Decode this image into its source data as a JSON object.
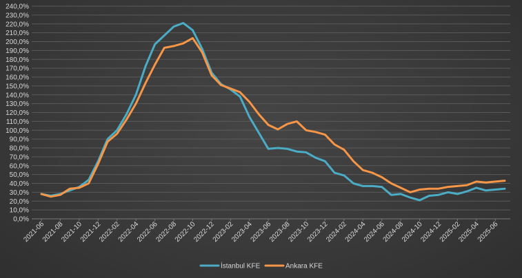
{
  "chart_data": {
    "type": "line",
    "title": "",
    "xlabel": "",
    "ylabel": "",
    "ylim": [
      0,
      240
    ],
    "ytick_step": 10,
    "ytick_format": "percent_comma",
    "x": [
      "2021-06",
      "2021-07",
      "2021-08",
      "2021-09",
      "2021-10",
      "2021-11",
      "2021-12",
      "2022-01",
      "2022-02",
      "2022-03",
      "2022-04",
      "2022-05",
      "2022-06",
      "2022-07",
      "2022-08",
      "2022-09",
      "2022-10",
      "2022-11",
      "2022-12",
      "2023-01",
      "2023-02",
      "2023-03",
      "2023-04",
      "2023-05",
      "2023-06",
      "2023-07",
      "2023-08",
      "2023-09",
      "2023-10",
      "2023-11",
      "2023-12",
      "2024-01",
      "2024-02",
      "2024-03",
      "2024-04",
      "2024-05",
      "2024-06",
      "2024-07",
      "2024-08",
      "2024-09",
      "2024-10",
      "2024-11",
      "2024-12",
      "2025-01",
      "2025-02",
      "2025-03",
      "2025-04",
      "2025-05",
      "2025-06",
      "2025-07"
    ],
    "x_tick_labels": [
      "2021-06",
      "2021-08",
      "2021-10",
      "2021-12",
      "2022-02",
      "2022-04",
      "2022-06",
      "2022-08",
      "2022-10",
      "2022-12",
      "2023-02",
      "2023-04",
      "2023-06",
      "2023-08",
      "2023-10",
      "2023-12",
      "2024-02",
      "2024-04",
      "2024-06",
      "2024-08",
      "2024-10",
      "2024-12",
      "2025-02",
      "2025-04",
      "2025-06"
    ],
    "series": [
      {
        "name": "İstanbul KFE",
        "color": "#4bacc6",
        "values": [
          28,
          26,
          28,
          32,
          36,
          44,
          65,
          90,
          100,
          118,
          140,
          172,
          197,
          207,
          217,
          221,
          213,
          192,
          165,
          152,
          146,
          138,
          115,
          97,
          79,
          80,
          79,
          76,
          75,
          69,
          65,
          52,
          49,
          40,
          37,
          37,
          36,
          27,
          28,
          24,
          21,
          26,
          27,
          30,
          28,
          31,
          35,
          32,
          33,
          34
        ]
      },
      {
        "name": "Ankara KFE",
        "color": "#f79646",
        "values": [
          28,
          25,
          27,
          34,
          35,
          40,
          62,
          87,
          96,
          112,
          130,
          153,
          174,
          193,
          195,
          198,
          204,
          188,
          162,
          151,
          147,
          143,
          132,
          118,
          106,
          101,
          107,
          110,
          100,
          98,
          95,
          84,
          78,
          65,
          55,
          52,
          47,
          40,
          35,
          30,
          33,
          34,
          34,
          36,
          37,
          38,
          42,
          41,
          42,
          43
        ]
      }
    ],
    "legend": "bottom"
  }
}
